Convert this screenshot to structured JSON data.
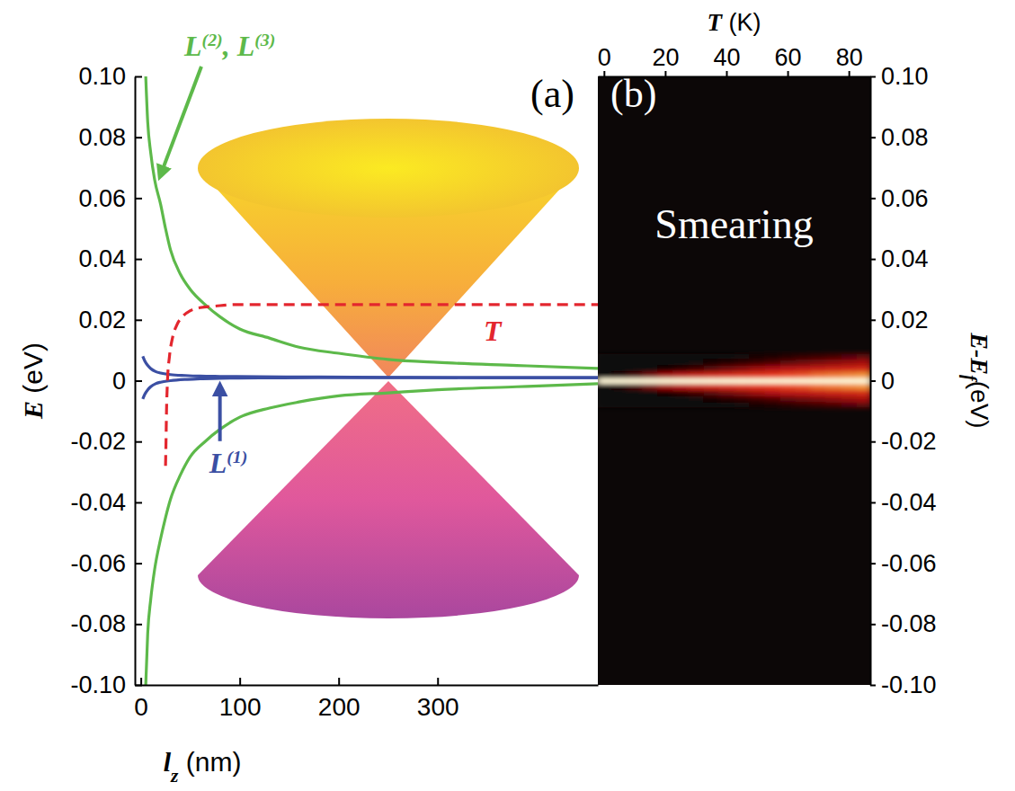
{
  "chart_data": [
    {
      "type": "line",
      "title": "(a)",
      "x_label": "lz (nm)",
      "y_label": "E (eV)",
      "xlim": [
        -6,
        462
      ],
      "xticks": [
        0,
        100,
        200,
        300
      ],
      "ylim": [
        -0.1,
        0.1
      ],
      "yticks": [
        {
          "value": 0.1,
          "label": "0.10"
        },
        0.08,
        0.06,
        0.04,
        0.02,
        0,
        -0.02,
        -0.04,
        -0.06,
        -0.08,
        {
          "value": -0.1,
          "label": "-0.10"
        }
      ],
      "series": [
        {
          "name": "L(2), L(3)",
          "color": "#5db94a",
          "line_style": "solid",
          "x": [
            5,
            7,
            10,
            14,
            20,
            25,
            30,
            40,
            50,
            65,
            80,
            100,
            130,
            160,
            200,
            250,
            300,
            380,
            462
          ],
          "values": [
            0.1,
            0.085,
            0.075,
            0.066,
            0.058,
            0.05,
            0.043,
            0.035,
            0.03,
            0.025,
            0.021,
            0.017,
            0.014,
            0.011,
            0.009,
            0.007,
            0.006,
            0.005,
            0.004
          ]
        },
        {
          "color": "#5db94a",
          "line_style": "solid",
          "x": [
            5,
            7,
            10,
            14,
            20,
            25,
            30,
            40,
            50,
            65,
            80,
            100,
            130,
            160,
            200,
            250,
            300,
            380,
            462
          ],
          "values": [
            -0.1,
            -0.083,
            -0.072,
            -0.062,
            -0.052,
            -0.045,
            -0.039,
            -0.031,
            -0.025,
            -0.02,
            -0.016,
            -0.012,
            -0.009,
            -0.007,
            -0.005,
            -0.004,
            -0.003,
            -0.002,
            -0.001
          ]
        },
        {
          "name": "L(1)",
          "color": "#3b4fa3",
          "line_style": "solid",
          "x": [
            2,
            4,
            7,
            10,
            15,
            20,
            30,
            45,
            60,
            80,
            120,
            180,
            250,
            350,
            462
          ],
          "values": [
            0.008,
            0.0065,
            0.005,
            0.004,
            0.003,
            0.0025,
            0.002,
            0.0017,
            0.0015,
            0.0014,
            0.0013,
            0.0012,
            0.0011,
            0.001,
            0.001
          ]
        },
        {
          "color": "#3b4fa3",
          "line_style": "solid",
          "x": [
            2,
            4,
            7,
            10,
            15,
            20,
            30,
            45,
            60,
            80,
            120,
            180,
            250,
            350,
            462
          ],
          "values": [
            -0.006,
            -0.0045,
            -0.003,
            -0.002,
            -0.001,
            -0.0005,
            0,
            0.0004,
            0.0006,
            0.0008,
            0.0009,
            0.001,
            0.001,
            0.001,
            0.001
          ]
        },
        {
          "name": "T",
          "color": "#e3262e",
          "line_style": "dashed",
          "x": [
            25,
            25.5,
            26,
            27,
            29,
            32,
            36,
            42,
            50,
            60,
            75,
            95,
            130,
            462
          ],
          "values": [
            -0.028,
            -0.02,
            -0.01,
            0,
            0.008,
            0.014,
            0.018,
            0.021,
            0.023,
            0.024,
            0.0245,
            0.025,
            0.025,
            0.025
          ]
        }
      ]
    },
    {
      "type": "heatmap",
      "title": "(b)",
      "x_label": "T (K)",
      "y_label": "E-Ef(eV)",
      "annotations": [
        "Smearing"
      ],
      "xlim": [
        -2,
        87
      ],
      "xticks": [
        0,
        20,
        40,
        60,
        80
      ],
      "ylim": [
        -0.1,
        0.1
      ],
      "yticks": [
        {
          "value": 0.1,
          "label": "0.10"
        },
        0.08,
        0.06,
        0.04,
        0.02,
        0,
        -0.02,
        -0.04,
        -0.06,
        -0.08,
        {
          "value": -0.1,
          "label": "-0.10"
        }
      ],
      "x": [
        0,
        5,
        10,
        15,
        20,
        25,
        30,
        35,
        40,
        45,
        50,
        55,
        60,
        65,
        70,
        75,
        80,
        85
      ],
      "y": [
        -0.008,
        -0.006,
        -0.004,
        -0.002,
        0,
        0.002,
        0.004,
        0.006,
        0.008
      ],
      "z": [
        [
          0,
          0,
          0,
          0,
          0,
          0,
          0,
          0,
          0.01,
          0.02,
          0.04,
          0.06,
          0.09,
          0.12,
          0.15,
          0.18,
          0.22,
          0.26
        ],
        [
          0,
          0,
          0,
          0,
          0,
          0.01,
          0.02,
          0.04,
          0.07,
          0.11,
          0.15,
          0.2,
          0.25,
          0.3,
          0.34,
          0.39,
          0.43,
          0.47
        ],
        [
          0,
          0,
          0,
          0.01,
          0.04,
          0.1,
          0.16,
          0.23,
          0.31,
          0.37,
          0.44,
          0.49,
          0.54,
          0.58,
          0.62,
          0.66,
          0.69,
          0.71
        ],
        [
          0,
          0.06,
          0.19,
          0.33,
          0.46,
          0.56,
          0.64,
          0.7,
          0.74,
          0.78,
          0.81,
          0.84,
          0.86,
          0.87,
          0.89,
          0.9,
          0.91,
          0.92
        ],
        [
          1,
          1,
          1,
          1,
          1,
          1,
          1,
          1,
          1,
          1,
          1,
          1,
          1,
          1,
          1,
          1,
          1,
          1
        ],
        [
          0,
          0.06,
          0.19,
          0.33,
          0.46,
          0.56,
          0.64,
          0.7,
          0.74,
          0.78,
          0.81,
          0.84,
          0.86,
          0.87,
          0.89,
          0.9,
          0.91,
          0.92
        ],
        [
          0,
          0,
          0,
          0.01,
          0.04,
          0.1,
          0.16,
          0.23,
          0.31,
          0.37,
          0.44,
          0.49,
          0.54,
          0.58,
          0.62,
          0.66,
          0.69,
          0.71
        ],
        [
          0,
          0,
          0,
          0,
          0,
          0.01,
          0.02,
          0.04,
          0.07,
          0.11,
          0.15,
          0.2,
          0.25,
          0.3,
          0.34,
          0.39,
          0.43,
          0.47
        ],
        [
          0,
          0,
          0,
          0,
          0,
          0,
          0,
          0,
          0.01,
          0.02,
          0.04,
          0.06,
          0.09,
          0.12,
          0.15,
          0.18,
          0.22,
          0.26
        ]
      ]
    }
  ]
}
